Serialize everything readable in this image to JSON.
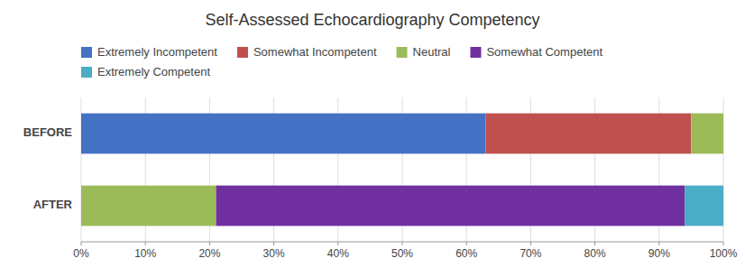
{
  "chart_data": {
    "type": "bar",
    "orientation": "horizontal",
    "stacked": true,
    "title": "Self-Assessed Echocardiography Competency",
    "categories": [
      "BEFORE",
      "AFTER"
    ],
    "series": [
      {
        "name": "Extremely Incompetent",
        "color": "#4472C4",
        "values": [
          63,
          0
        ]
      },
      {
        "name": "Somewhat Incompetent",
        "color": "#C0504D",
        "values": [
          32,
          0
        ]
      },
      {
        "name": "Neutral",
        "color": "#9BBB59",
        "values": [
          5,
          21
        ]
      },
      {
        "name": "Somewhat Competent",
        "color": "#7030A0",
        "values": [
          0,
          73
        ]
      },
      {
        "name": "Extremely Competent",
        "color": "#4BACC6",
        "values": [
          0,
          6
        ]
      }
    ],
    "xlim": [
      0,
      100
    ],
    "xticks": [
      {
        "value": 0,
        "label": "0%"
      },
      {
        "value": 10,
        "label": "10%"
      },
      {
        "value": 20,
        "label": "20%"
      },
      {
        "value": 30,
        "label": "30%"
      },
      {
        "value": 40,
        "label": "40%"
      },
      {
        "value": 50,
        "label": "50%"
      },
      {
        "value": 60,
        "label": "60%"
      },
      {
        "value": 70,
        "label": "70%"
      },
      {
        "value": 80,
        "label": "80%"
      },
      {
        "value": 90,
        "label": "90%"
      },
      {
        "value": 100,
        "label": "100%"
      }
    ],
    "grid": true,
    "legend": "top"
  }
}
